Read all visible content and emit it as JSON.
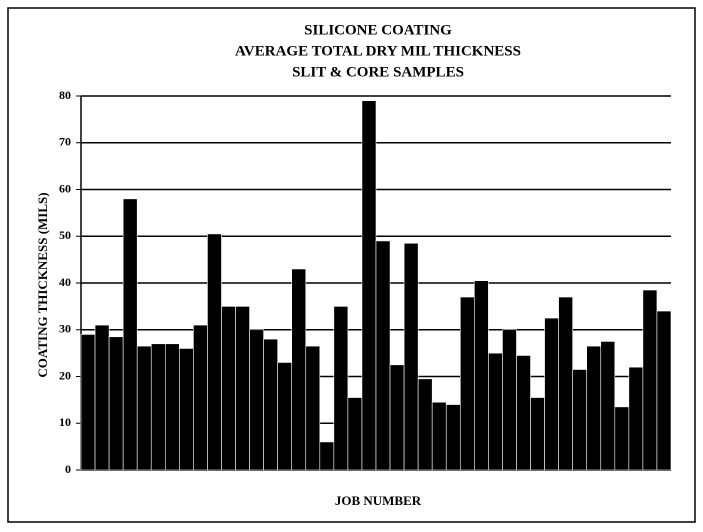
{
  "chart_data": {
    "type": "bar",
    "title": [
      "SILICONE COATING",
      "AVERAGE TOTAL DRY MIL THICKNESS",
      "SLIT & CORE SAMPLES"
    ],
    "x_label": "JOB NUMBER",
    "y_label": "COATING THICKNESS (MILS)",
    "categories": [
      null,
      null,
      null,
      null,
      null,
      null,
      null,
      null,
      null,
      null,
      null,
      null,
      null,
      null,
      null,
      null,
      null,
      null,
      null,
      null,
      null,
      null,
      null,
      null,
      null,
      null,
      null,
      null,
      null,
      null,
      null,
      null,
      null,
      null,
      null,
      null,
      null,
      null,
      null,
      null,
      null,
      null
    ],
    "values": [
      29,
      31,
      28.5,
      58,
      26.5,
      27,
      27,
      26,
      31,
      50.5,
      35,
      35,
      30,
      28,
      23,
      43,
      26.5,
      6,
      35,
      15.5,
      79,
      49,
      22.5,
      48.5,
      19.5,
      14.5,
      14,
      37,
      40.5,
      25,
      30,
      24.5,
      15.5,
      32.5,
      37,
      21.5,
      26.5,
      27.5,
      13.5,
      22,
      38.5,
      34
    ],
    "color": "#000000",
    "ylim": [
      0,
      80
    ],
    "yticks": [
      0,
      10,
      20,
      30,
      40,
      50,
      60,
      70,
      80
    ],
    "grid": true
  }
}
